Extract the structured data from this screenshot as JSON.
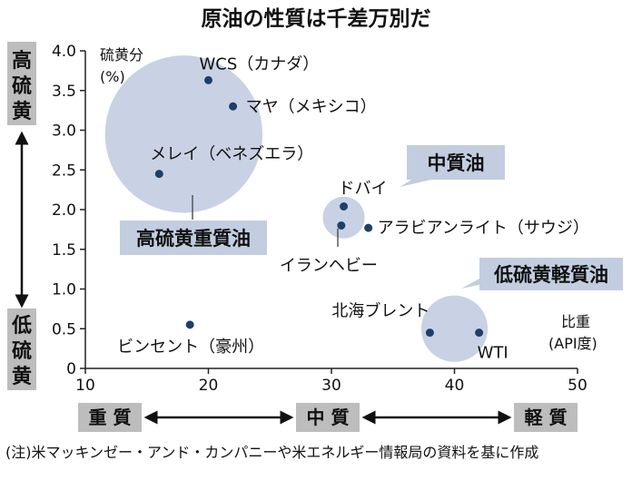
{
  "chart_data": {
    "type": "scatter",
    "title": "原油の性質は千差万別だ",
    "ylabel": "硫黄分",
    "ylabel_unit": "(%)",
    "xlabel": "比重",
    "xlabel_unit": "(API度)",
    "xlim": [
      10,
      50
    ],
    "ylim": [
      0,
      4.0
    ],
    "xticks": [
      10,
      20,
      30,
      40,
      50
    ],
    "yticks": [
      0,
      0.5,
      1.0,
      1.5,
      2.0,
      2.5,
      3.0,
      3.5,
      4.0
    ],
    "ytick_labels": [
      "0",
      "0.5",
      "1.0",
      "1.5",
      "2.0",
      "2.5",
      "3.0",
      "3.5",
      "4.0"
    ],
    "points": [
      {
        "name": "WCS（カナダ）",
        "x": 20,
        "y": 3.63
      },
      {
        "name": "マヤ（メキシコ）",
        "x": 22,
        "y": 3.3
      },
      {
        "name": "メレイ（ベネズエラ）",
        "x": 16,
        "y": 2.45
      },
      {
        "name": "ドバイ",
        "x": 31,
        "y": 2.04
      },
      {
        "name": "イランヘビー",
        "x": 30.8,
        "y": 1.8
      },
      {
        "name": "アラビアンライト（サウジ）",
        "x": 33,
        "y": 1.77
      },
      {
        "name": "北海ブレント",
        "x": 38,
        "y": 0.45
      },
      {
        "name": "WTI",
        "x": 42,
        "y": 0.45
      },
      {
        "name": "ビンセント（豪州）",
        "x": 18.5,
        "y": 0.55
      }
    ],
    "groups": [
      {
        "name": "高硫黄重質油",
        "cx": 18,
        "cy": 2.95,
        "r_x": 6.4
      },
      {
        "name": "中質油",
        "cx": 31,
        "cy": 1.9,
        "r_x": 1.7
      },
      {
        "name": "低硫黄軽質油",
        "cx": 40,
        "cy": 0.5,
        "r_x": 2.7
      }
    ],
    "y_axis_labels": {
      "top": "高硫黄",
      "bottom": "低硫黄"
    },
    "x_axis_labels": {
      "left": "重 質",
      "middle": "中 質",
      "right": "軽 質"
    }
  },
  "note": "(注)米マッキンゼー・アンド・カンパニーや米エネルギー情報局の資料を基に作成",
  "colors": {
    "bubble": "#c8d2e4",
    "dot": "#1e3f66",
    "label_box": "#c2cde0",
    "side_box": "#bdbdbd",
    "axis": "#222222"
  }
}
